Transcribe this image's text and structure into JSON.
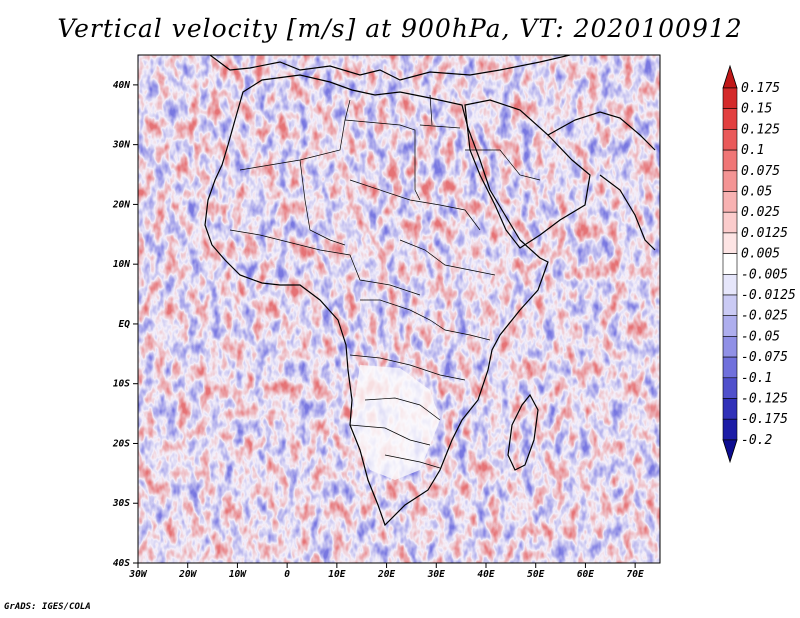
{
  "title": "Vertical velocity [m/s] at 900hPa, VT: 2020100912",
  "map_data": {
    "variable": "Vertical velocity",
    "units": "m/s",
    "level": "900hPa",
    "valid_time": "2020100912",
    "lat_labels": [
      "40N",
      "30N",
      "20N",
      "10N",
      "EQ",
      "10S",
      "20S",
      "30S",
      "40S"
    ],
    "lon_labels": [
      "30W",
      "20W",
      "10W",
      "0",
      "10E",
      "20E",
      "30E",
      "40E",
      "50E",
      "60E",
      "70E"
    ],
    "lat_range": [
      -40,
      45
    ],
    "lon_range": [
      -30,
      75
    ]
  },
  "colorbar": {
    "labels": [
      "0.175",
      "0.15",
      "0.125",
      "0.1",
      "0.075",
      "0.05",
      "0.025",
      "0.0125",
      "0.005",
      "-0.005",
      "-0.0125",
      "-0.025",
      "-0.05",
      "-0.075",
      "-0.1",
      "-0.125",
      "-0.175",
      "-0.2"
    ],
    "colors": [
      "#c01818",
      "#d42a2a",
      "#e24040",
      "#ea5a5a",
      "#f07676",
      "#f49494",
      "#f8b2b2",
      "#fbcccc",
      "#fde4e4",
      "#ffffff",
      "#e6e6fb",
      "#cacaf4",
      "#aeaeee",
      "#9090e6",
      "#7070dc",
      "#5050cc",
      "#3030b8",
      "#1c1ca6",
      "#0c0c90"
    ]
  },
  "credit": "GrADS: IGES/COLA"
}
